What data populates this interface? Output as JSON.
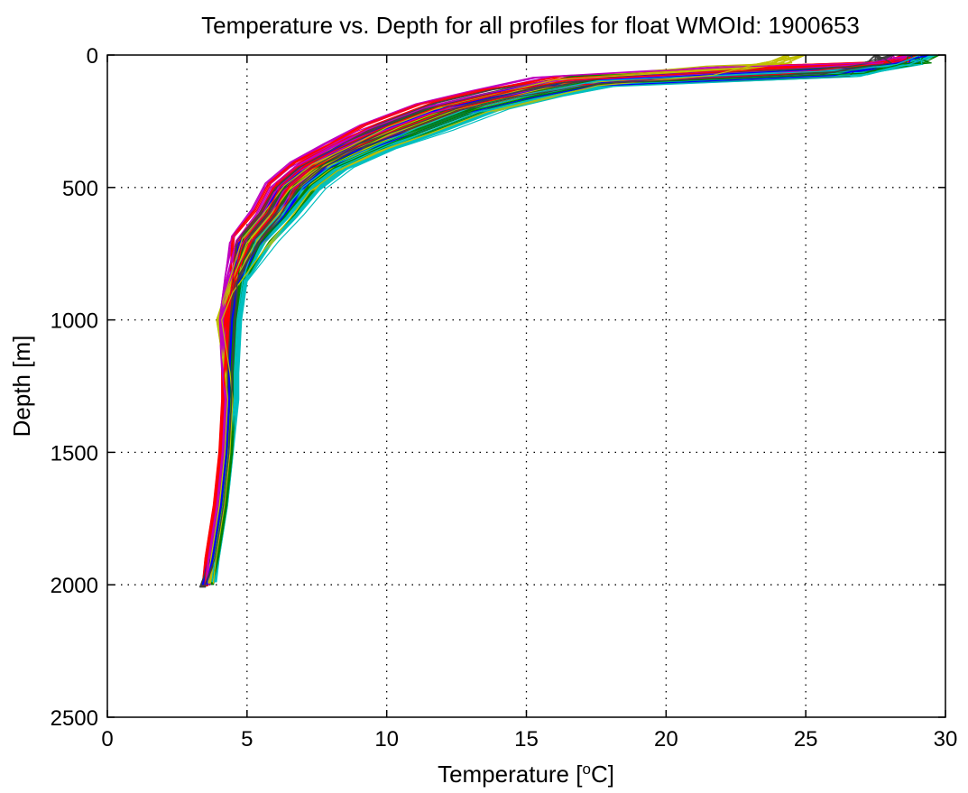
{
  "chart_data": {
    "type": "line",
    "title": "Temperature vs. Depth for all profiles for float WMOId: 1900653",
    "xlabel": "Temperature [",
    "xlabel_sup": "o",
    "xlabel_end": "C]",
    "ylabel": "Depth [m]",
    "xlim": [
      0,
      30
    ],
    "ylim": [
      0,
      2500
    ],
    "y_reversed": true,
    "xticks": [
      0,
      5,
      10,
      15,
      20,
      25,
      30
    ],
    "yticks": [
      0,
      500,
      1000,
      1500,
      2000,
      2500
    ],
    "grid": true,
    "legend": "none",
    "series_colors": [
      "#0000ff",
      "#008000",
      "#ff0000",
      "#00bfbf",
      "#bf00bf",
      "#bfbf00",
      "#404040"
    ],
    "profiles": [
      {
        "x": [
          29.0,
          28.5,
          25.5,
          17.0,
          14.5,
          12.5,
          10.5,
          8.8,
          7.5,
          6.6,
          6.0,
          5.2,
          4.6,
          4.4,
          4.3,
          4.3,
          4.2,
          4.0,
          3.7,
          3.5
        ],
        "y": [
          0,
          30,
          60,
          100,
          150,
          200,
          280,
          350,
          420,
          500,
          600,
          700,
          850,
          1000,
          1200,
          1300,
          1500,
          1700,
          1900,
          2000
        ]
      },
      {
        "x": [
          29.2,
          28.9,
          26.5,
          17.5,
          15.0,
          13.0,
          11.0,
          9.5,
          8.0,
          7.0,
          6.3,
          5.4,
          4.8,
          4.6,
          4.5,
          4.5,
          4.4,
          4.2,
          3.9,
          3.7
        ],
        "y": [
          0,
          30,
          60,
          100,
          150,
          200,
          280,
          350,
          420,
          500,
          600,
          700,
          850,
          1000,
          1200,
          1300,
          1500,
          1700,
          1900,
          2000
        ]
      },
      {
        "x": [
          28.8,
          28.2,
          24.0,
          16.5,
          14.0,
          12.0,
          10.0,
          8.5,
          7.2,
          6.3,
          5.8,
          5.0,
          4.5,
          4.3,
          4.2,
          4.2,
          4.1,
          3.9,
          3.6,
          3.5
        ],
        "y": [
          0,
          25,
          55,
          95,
          145,
          195,
          275,
          345,
          415,
          495,
          595,
          695,
          845,
          1000,
          1200,
          1300,
          1500,
          1700,
          1900,
          2005
        ]
      },
      {
        "x": [
          29.1,
          28.7,
          27.0,
          18.0,
          15.5,
          13.5,
          11.5,
          9.8,
          8.3,
          7.3,
          6.5,
          5.6,
          4.9,
          4.7,
          4.6,
          4.6,
          4.4,
          4.2,
          3.9,
          3.8
        ],
        "y": [
          0,
          35,
          65,
          105,
          155,
          205,
          285,
          355,
          425,
          505,
          605,
          705,
          855,
          1000,
          1200,
          1300,
          1500,
          1700,
          1900,
          1990
        ]
      },
      {
        "x": [
          28.5,
          27.8,
          23.0,
          16.0,
          13.8,
          11.8,
          9.8,
          8.2,
          7.0,
          6.1,
          5.6,
          4.9,
          4.3,
          4.1,
          4.2,
          4.3,
          4.2,
          4.0,
          3.7,
          3.6
        ],
        "y": [
          0,
          30,
          60,
          100,
          150,
          200,
          280,
          350,
          420,
          500,
          600,
          700,
          850,
          1000,
          1200,
          1300,
          1500,
          1700,
          1900,
          2000
        ]
      },
      {
        "x": [
          24.5,
          24.0,
          22.0,
          16.8,
          14.8,
          12.8,
          10.8,
          9.2,
          7.8,
          6.8,
          6.1,
          5.3,
          4.4,
          4.0,
          4.3,
          4.4,
          4.3,
          4.1,
          3.8,
          3.7
        ],
        "y": [
          0,
          30,
          60,
          100,
          150,
          200,
          280,
          350,
          420,
          500,
          600,
          700,
          880,
          1000,
          1200,
          1300,
          1500,
          1700,
          1900,
          1995
        ]
      },
      {
        "x": [
          28.0,
          27.5,
          26.0,
          17.2,
          14.2,
          12.2,
          10.2,
          8.6,
          7.4,
          6.5,
          5.9,
          5.1,
          4.6,
          4.5,
          4.4,
          4.4,
          4.3,
          4.1,
          3.8,
          3.4
        ],
        "y": [
          0,
          30,
          60,
          100,
          150,
          200,
          280,
          350,
          420,
          500,
          600,
          700,
          850,
          1000,
          1200,
          1300,
          1500,
          1700,
          1900,
          2010
        ]
      }
    ]
  }
}
